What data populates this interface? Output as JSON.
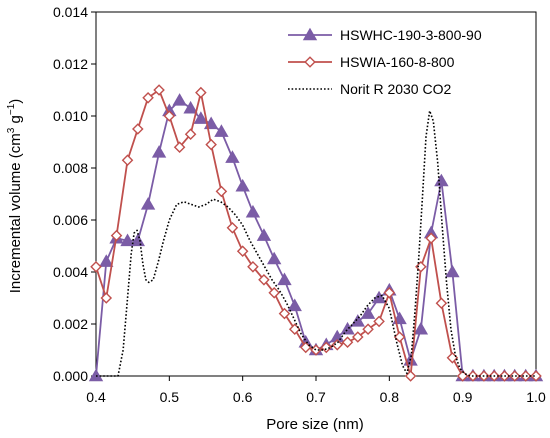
{
  "chart_data": {
    "type": "line",
    "xlabel": "Pore size (nm)",
    "ylabel_main": "Incremental volume (cm",
    "ylabel_sup1": "3",
    "ylabel_mid": " g",
    "ylabel_sup2": "−1",
    "ylabel_end": ")",
    "xlim": [
      0.4,
      1.0
    ],
    "ylim": [
      0,
      0.014
    ],
    "xticks": [
      "0.4",
      "0.5",
      "0.6",
      "0.7",
      "0.8",
      "0.9",
      "1.0"
    ],
    "yticks": [
      "0.000",
      "0.002",
      "0.004",
      "0.006",
      "0.008",
      "0.010",
      "0.012",
      "0.014"
    ],
    "grid": false,
    "legend_position": "top-right",
    "series": [
      {
        "name": "HSWHC-190-3-800-90",
        "color": "#7b5ca6",
        "marker": "triangle",
        "dash": "solid",
        "x": [
          0.4,
          0.414,
          0.428,
          0.443,
          0.457,
          0.471,
          0.486,
          0.5,
          0.514,
          0.529,
          0.543,
          0.557,
          0.571,
          0.586,
          0.6,
          0.614,
          0.629,
          0.643,
          0.657,
          0.671,
          0.686,
          0.7,
          0.714,
          0.729,
          0.743,
          0.757,
          0.771,
          0.786,
          0.8,
          0.814,
          0.829,
          0.843,
          0.857,
          0.871,
          0.886,
          0.9,
          0.914,
          0.929,
          0.943,
          0.957,
          0.971,
          0.986,
          1.0
        ],
        "y": [
          0.0,
          0.0044,
          0.0053,
          0.0052,
          0.0052,
          0.0066,
          0.0086,
          0.0102,
          0.0106,
          0.0103,
          0.0099,
          0.0097,
          0.0094,
          0.0084,
          0.0073,
          0.0063,
          0.0054,
          0.0045,
          0.0037,
          0.0027,
          0.0013,
          0.001,
          0.0012,
          0.0015,
          0.0018,
          0.0021,
          0.0024,
          0.003,
          0.0033,
          0.0022,
          0.0006,
          0.0018,
          0.0055,
          0.0075,
          0.004,
          0.0,
          0.0,
          0.0,
          0.0,
          0.0,
          0.0,
          0.0,
          0.0
        ]
      },
      {
        "name": "HSWIA-160-8-800",
        "color": "#c0504d",
        "marker": "diamond",
        "dash": "solid",
        "x": [
          0.4,
          0.414,
          0.428,
          0.443,
          0.457,
          0.471,
          0.486,
          0.5,
          0.514,
          0.529,
          0.543,
          0.557,
          0.571,
          0.586,
          0.6,
          0.614,
          0.629,
          0.643,
          0.657,
          0.671,
          0.686,
          0.7,
          0.714,
          0.729,
          0.743,
          0.757,
          0.771,
          0.786,
          0.8,
          0.814,
          0.829,
          0.843,
          0.857,
          0.871,
          0.886,
          0.9,
          0.914,
          0.929,
          0.943,
          0.957,
          0.971,
          0.986,
          1.0
        ],
        "y": [
          0.0042,
          0.003,
          0.0054,
          0.0083,
          0.0095,
          0.0107,
          0.011,
          0.01,
          0.0088,
          0.0093,
          0.0109,
          0.0089,
          0.0071,
          0.0057,
          0.0048,
          0.0042,
          0.0037,
          0.0032,
          0.0024,
          0.0018,
          0.0011,
          0.001,
          0.0011,
          0.0012,
          0.0013,
          0.0015,
          0.0018,
          0.0021,
          0.0032,
          0.0015,
          0.0,
          0.0042,
          0.0053,
          0.0028,
          0.0007,
          0.0,
          0.0,
          0.0,
          0.0,
          0.0,
          0.0,
          0.0,
          0.0
        ]
      },
      {
        "name": "Norit R 2030 CO2",
        "color": "#000000",
        "marker": "none",
        "dash": "dotted",
        "x": [
          0.4,
          0.42,
          0.43,
          0.437,
          0.443,
          0.448,
          0.452,
          0.456,
          0.46,
          0.464,
          0.468,
          0.472,
          0.478,
          0.485,
          0.492,
          0.5,
          0.51,
          0.52,
          0.53,
          0.54,
          0.55,
          0.56,
          0.57,
          0.58,
          0.59,
          0.6,
          0.61,
          0.62,
          0.63,
          0.64,
          0.65,
          0.66,
          0.67,
          0.68,
          0.69,
          0.7,
          0.71,
          0.72,
          0.73,
          0.74,
          0.75,
          0.76,
          0.77,
          0.78,
          0.79,
          0.8,
          0.81,
          0.818,
          0.824,
          0.83,
          0.835,
          0.84,
          0.845,
          0.85,
          0.855,
          0.86,
          0.866,
          0.872,
          0.878,
          0.884,
          0.89,
          0.896,
          0.902,
          0.91,
          0.92,
          0.94,
          0.96,
          0.98,
          1.0
        ],
        "y": [
          0.0,
          0.0,
          0.0,
          0.001,
          0.003,
          0.0047,
          0.0055,
          0.0056,
          0.0052,
          0.0043,
          0.0037,
          0.0036,
          0.0037,
          0.0044,
          0.0052,
          0.006,
          0.0066,
          0.0067,
          0.0066,
          0.0065,
          0.0066,
          0.0068,
          0.0067,
          0.0065,
          0.0062,
          0.0058,
          0.0052,
          0.0047,
          0.0042,
          0.0037,
          0.0033,
          0.0028,
          0.0022,
          0.0016,
          0.0012,
          0.001,
          0.001,
          0.0011,
          0.0013,
          0.0017,
          0.002,
          0.0023,
          0.0027,
          0.003,
          0.0031,
          0.0026,
          0.0013,
          0.0004,
          0.0001,
          0.0008,
          0.0025,
          0.0045,
          0.0068,
          0.0092,
          0.0102,
          0.0098,
          0.0082,
          0.0058,
          0.0036,
          0.0018,
          0.0008,
          0.0003,
          0.0001,
          0.0,
          0.0,
          0.0,
          0.0,
          0.0,
          0.0
        ]
      }
    ]
  }
}
